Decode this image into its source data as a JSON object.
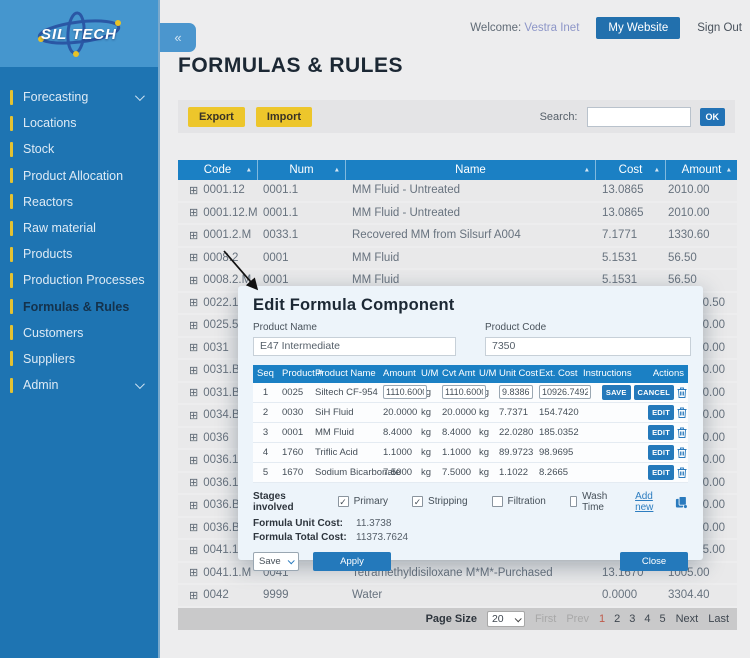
{
  "topbar": {
    "welcome_label": "Welcome:",
    "username": "Vestra Inet",
    "my_website_label": "My Website",
    "sign_out_label": "Sign Out"
  },
  "sidebar": {
    "logo_text": "SIL TECH",
    "collapse_icon": "«",
    "items": [
      {
        "label": "Forecasting",
        "chevron": true
      },
      {
        "label": "Locations"
      },
      {
        "label": "Stock"
      },
      {
        "label": "Product Allocation"
      },
      {
        "label": "Reactors"
      },
      {
        "label": "Raw material"
      },
      {
        "label": "Products"
      },
      {
        "label": "Production Processes"
      },
      {
        "label": "Formulas & Rules",
        "active": true
      },
      {
        "label": "Customers"
      },
      {
        "label": "Suppliers"
      },
      {
        "label": "Admin",
        "chevron": true
      }
    ]
  },
  "page": {
    "title": "FORMULAS & RULES"
  },
  "toolbar": {
    "export_label": "Export",
    "import_label": "Import",
    "search_label": "Search:",
    "search_value": "",
    "ok_label": "OK"
  },
  "icons": {
    "expand": "⊞",
    "sort_asc": "▲",
    "check": "✓"
  },
  "colors": {
    "sidebar_blue": "#1e74b2",
    "sidebar_header_blue": "#4596ce",
    "table_header_blue": "#1b80c4",
    "accent_yellow": "#edc62b",
    "button_blue": "#2479bb",
    "link_blue": "#2d7dc0",
    "active_page_red": "#bf5a4b"
  },
  "main_table": {
    "columns": [
      "Code",
      "Num",
      "Name",
      "Cost",
      "Amount"
    ],
    "rows": [
      {
        "code": "0001.12",
        "num": "0001.1",
        "name": "MM Fluid - Untreated",
        "cost": "13.0865",
        "amount": "2010.00"
      },
      {
        "code": "0001.12.M",
        "num": "0001.1",
        "name": "MM Fluid - Untreated",
        "cost": "13.0865",
        "amount": "2010.00"
      },
      {
        "code": "0001.2.M",
        "num": "0033.1",
        "name": "Recovered MM from Silsurf A004",
        "cost": "7.1771",
        "amount": "1330.60"
      },
      {
        "code": "0008.2",
        "num": "0001",
        "name": "MM Fluid",
        "cost": "5.1531",
        "amount": "56.50"
      },
      {
        "code": "0008.2.M",
        "num": "0001",
        "name": "MM Fluid",
        "cost": "5.1531",
        "amount": "56.50"
      },
      {
        "code": "0022.1",
        "num": "",
        "name": "",
        "cost": "",
        "amount": "0.50"
      },
      {
        "code": "0025.5",
        "num": "",
        "name": "",
        "cost": "",
        "amount": "0.00"
      },
      {
        "code": "0031",
        "num": "",
        "name": "",
        "cost": "",
        "amount": "0.00"
      },
      {
        "code": "0031.B",
        "num": "",
        "name": "",
        "cost": "",
        "amount": "0.00"
      },
      {
        "code": "0031.B.M",
        "num": "",
        "name": "",
        "cost": "",
        "amount": "0.00"
      },
      {
        "code": "0034.B",
        "num": "",
        "name": "",
        "cost": "",
        "amount": "0.00"
      },
      {
        "code": "0036",
        "num": "",
        "name": "",
        "cost": "",
        "amount": "0.00"
      },
      {
        "code": "0036.1",
        "num": "",
        "name": "",
        "cost": "",
        "amount": "0.00"
      },
      {
        "code": "0036.1.B.M",
        "num": "",
        "name": "",
        "cost": "",
        "amount": "00.00"
      },
      {
        "code": "0036.B",
        "num": "",
        "name": "",
        "cost": "",
        "amount": "00.00"
      },
      {
        "code": "0036.B.M",
        "num": "",
        "name": "",
        "cost": "",
        "amount": "00.00"
      },
      {
        "code": "0041.1",
        "num": "",
        "name": "",
        "cost": "",
        "amount": "5.00"
      },
      {
        "code": "0041.1.M",
        "num": "0041",
        "name": "Tetramethyldisiloxane M*M*-Purchased",
        "cost": "13.1670",
        "amount": "1005.00"
      },
      {
        "code": "0042",
        "num": "9999",
        "name": "Water",
        "cost": "0.0000",
        "amount": "3304.40"
      }
    ]
  },
  "modal": {
    "title": "Edit Formula Component",
    "product_name_label": "Product Name",
    "product_name_value": "E47 Intermediate",
    "product_code_label": "Product Code",
    "product_code_value": "7350",
    "table": {
      "columns": [
        "Seq",
        "Product #",
        "Product Name",
        "Amount",
        "U/M",
        "Cvt Amt",
        "U/M",
        "Unit Cost",
        "Ext. Cost",
        "Instructions",
        "Actions"
      ],
      "save_label": "SAVE",
      "cancel_label": "CANCEL",
      "edit_label": "EDIT",
      "rows": [
        {
          "seq": "1",
          "product_num": "0025",
          "product_name": "Siltech CF-954",
          "amount": "1110.6000",
          "um": "kg",
          "cvt_amt": "1110.6000",
          "um2": "kg",
          "unit_cost": "9.8386",
          "ext_cost": "10926.7492",
          "editing": true
        },
        {
          "seq": "2",
          "product_num": "0030",
          "product_name": "SiH Fluid",
          "amount": "20.0000",
          "um": "kg",
          "cvt_amt": "20.0000",
          "um2": "kg",
          "unit_cost": "7.7371",
          "ext_cost": "154.7420",
          "editing": false
        },
        {
          "seq": "3",
          "product_num": "0001",
          "product_name": "MM Fluid",
          "amount": "8.4000",
          "um": "kg",
          "cvt_amt": "8.4000",
          "um2": "kg",
          "unit_cost": "22.0280",
          "ext_cost": "185.0352",
          "editing": false
        },
        {
          "seq": "4",
          "product_num": "1760",
          "product_name": "Triflic Acid",
          "amount": "1.1000",
          "um": "kg",
          "cvt_amt": "1.1000",
          "um2": "kg",
          "unit_cost": "89.9723",
          "ext_cost": "98.9695",
          "editing": false
        },
        {
          "seq": "5",
          "product_num": "1670",
          "product_name": "Sodium Bicarbonate",
          "amount": "7.5000",
          "um": "kg",
          "cvt_amt": "7.5000",
          "um2": "kg",
          "unit_cost": "1.1022",
          "ext_cost": "8.2665",
          "editing": false
        }
      ]
    },
    "stages": {
      "label": "Stages involved",
      "options": [
        {
          "label": "Primary",
          "checked": true
        },
        {
          "label": "Stripping",
          "checked": true
        },
        {
          "label": "Filtration",
          "checked": false
        },
        {
          "label": "Wash Time",
          "checked": false
        }
      ],
      "add_new_label": "Add new"
    },
    "unit_cost_label": "Formula Unit Cost:",
    "unit_cost_value": "11.3738",
    "total_cost_label": "Formula Total Cost:",
    "total_cost_value": "11373.7624",
    "save_dropdown_value": "Save",
    "apply_label": "Apply",
    "close_label": "Close"
  },
  "pagination": {
    "page_size_label": "Page Size",
    "page_size_value": "20",
    "first_label": "First",
    "prev_label": "Prev",
    "pages": [
      "1",
      "2",
      "3",
      "4",
      "5"
    ],
    "active_page": "1",
    "next_label": "Next",
    "last_label": "Last"
  }
}
